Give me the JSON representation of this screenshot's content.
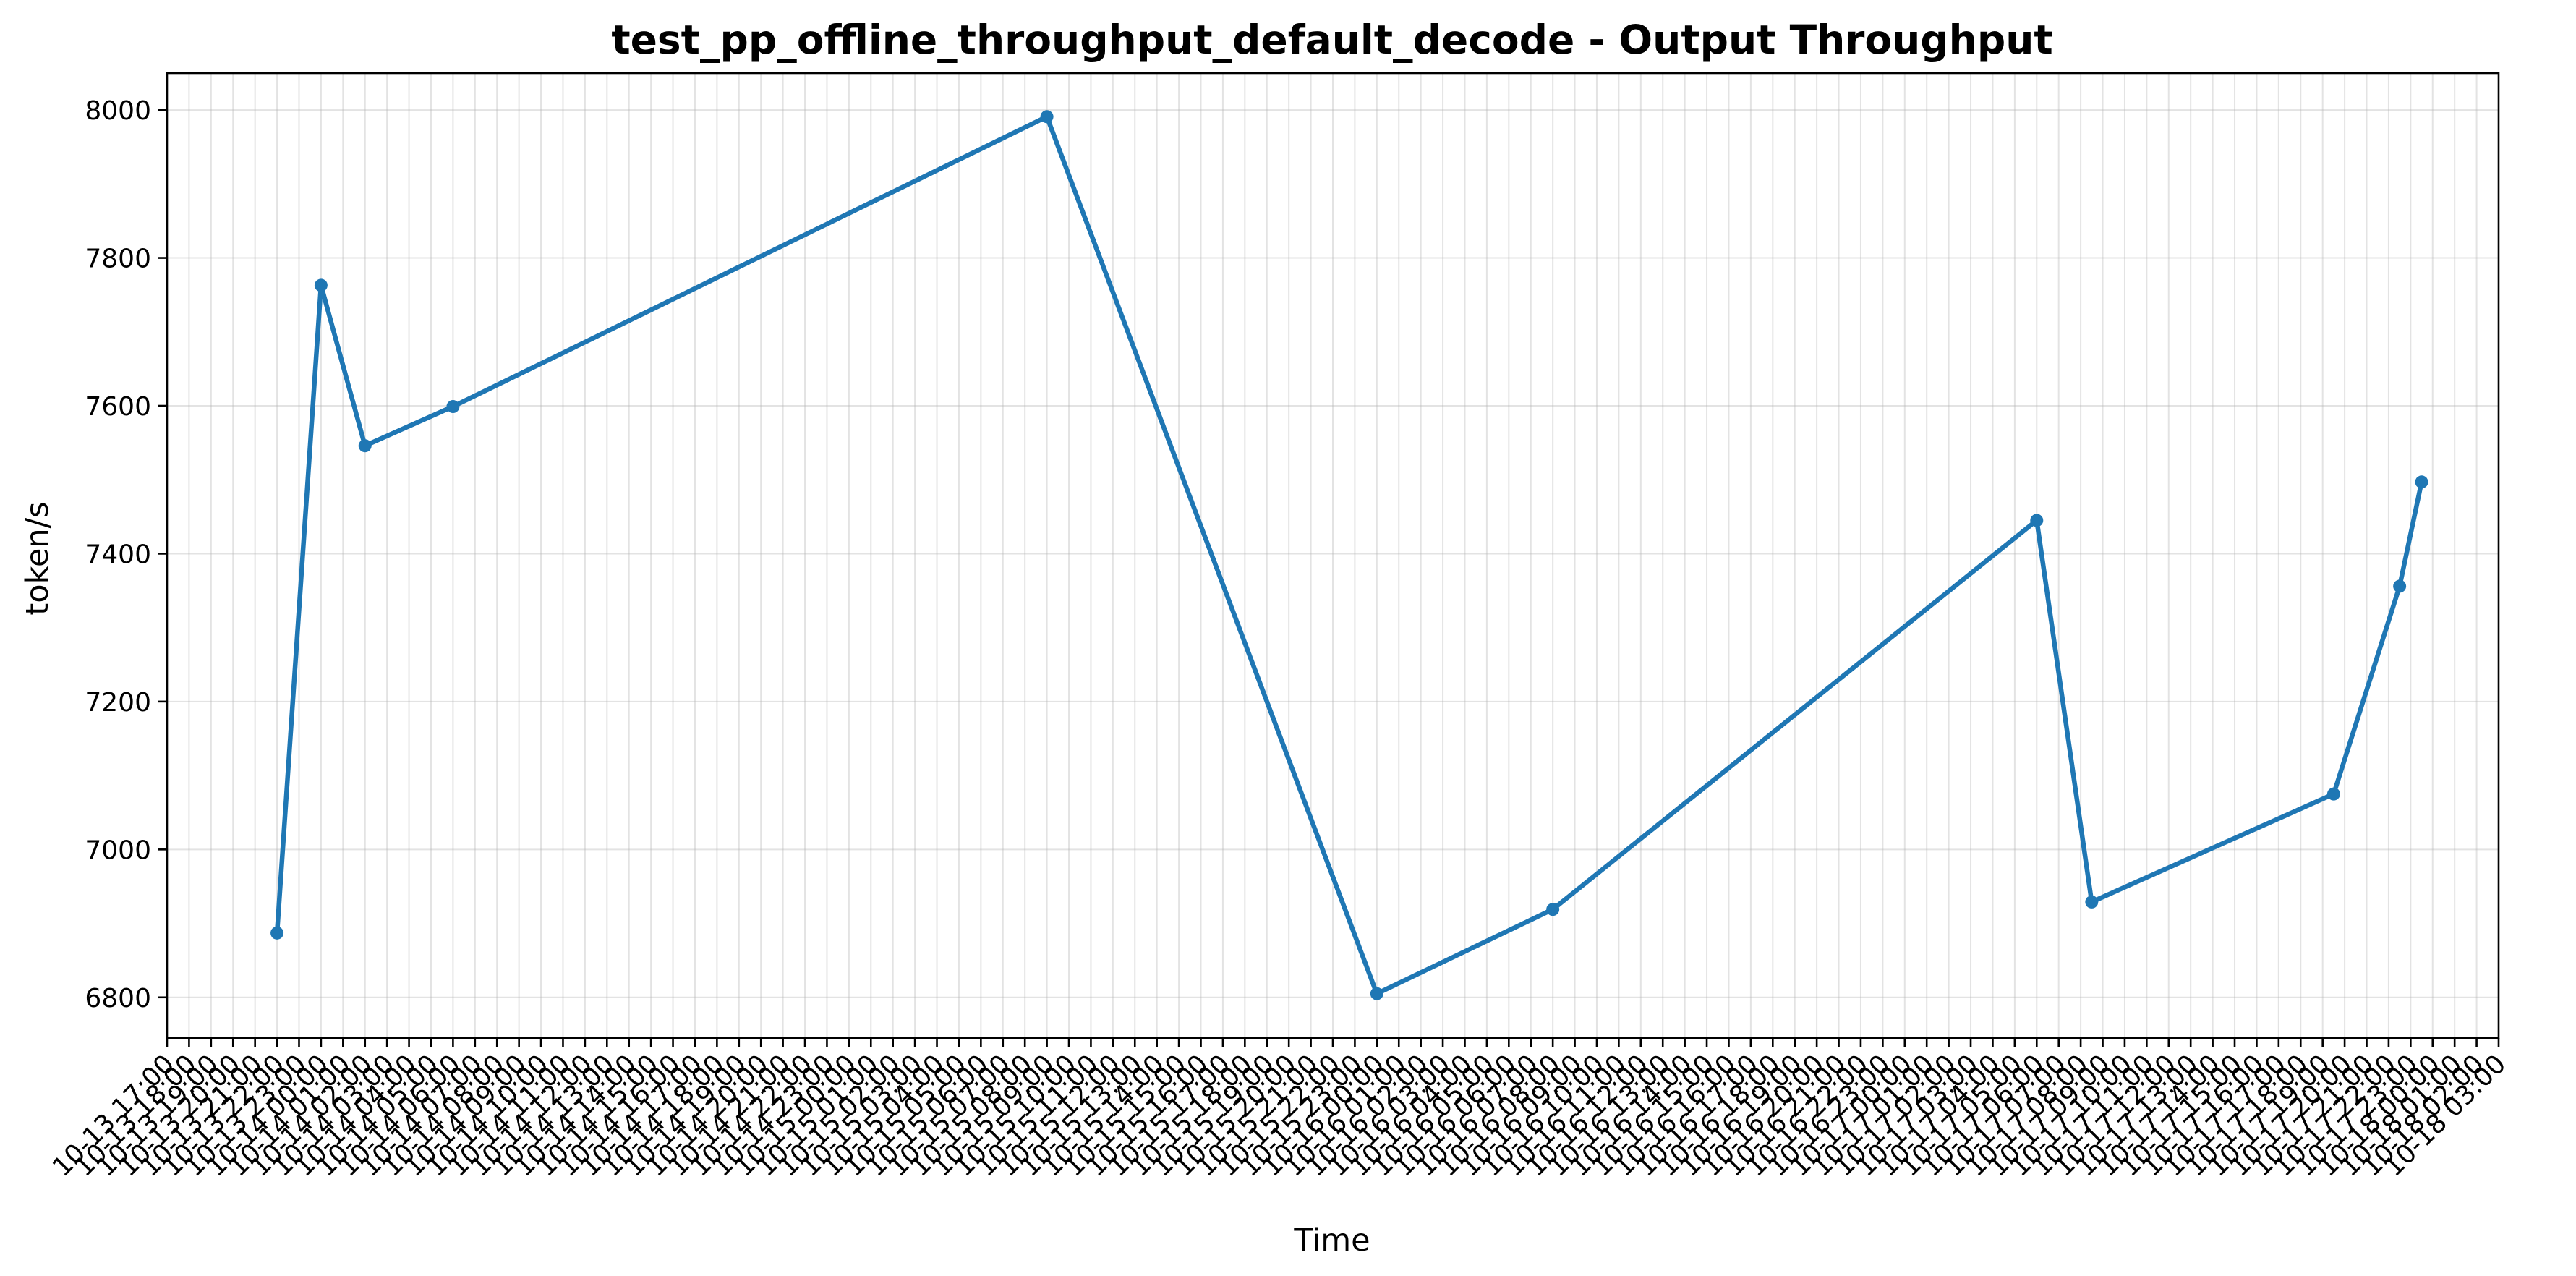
{
  "chart_data": {
    "type": "line",
    "title": "test_pp_offline_throughput_default_decode - Output Throughput",
    "xlabel": "Time",
    "ylabel": "token/s",
    "grid": true,
    "legend": "none",
    "color": "#1f77b4",
    "x_range": [
      "10-13 17:00",
      "10-18 03:00"
    ],
    "ylim": [
      6745,
      8050
    ],
    "yticks": [
      6800,
      7000,
      7200,
      7400,
      7600,
      7800,
      8000
    ],
    "xtick_step_hours": 1,
    "xtick_labels": [
      "10-13 17:00",
      "10-13 18:00",
      "10-13 19:00",
      "10-13 20:00",
      "10-13 21:00",
      "10-13 22:00",
      "10-13 23:00",
      "10-14 00:00",
      "10-14 01:00",
      "10-14 02:00",
      "10-14 03:00",
      "10-14 04:00",
      "10-14 05:00",
      "10-14 06:00",
      "10-14 07:00",
      "10-14 08:00",
      "10-14 09:00",
      "10-14 10:00",
      "10-14 11:00",
      "10-14 12:00",
      "10-14 13:00",
      "10-14 14:00",
      "10-14 15:00",
      "10-14 16:00",
      "10-14 17:00",
      "10-14 18:00",
      "10-14 19:00",
      "10-14 20:00",
      "10-14 21:00",
      "10-14 22:00",
      "10-14 23:00",
      "10-15 00:00",
      "10-15 01:00",
      "10-15 02:00",
      "10-15 03:00",
      "10-15 04:00",
      "10-15 05:00",
      "10-15 06:00",
      "10-15 07:00",
      "10-15 08:00",
      "10-15 09:00",
      "10-15 10:00",
      "10-15 11:00",
      "10-15 12:00",
      "10-15 13:00",
      "10-15 14:00",
      "10-15 15:00",
      "10-15 16:00",
      "10-15 17:00",
      "10-15 18:00",
      "10-15 19:00",
      "10-15 20:00",
      "10-15 21:00",
      "10-15 22:00",
      "10-15 23:00",
      "10-16 00:00",
      "10-16 01:00",
      "10-16 02:00",
      "10-16 03:00",
      "10-16 04:00",
      "10-16 05:00",
      "10-16 06:00",
      "10-16 07:00",
      "10-16 08:00",
      "10-16 09:00",
      "10-16 10:00",
      "10-16 11:00",
      "10-16 12:00",
      "10-16 13:00",
      "10-16 14:00",
      "10-16 15:00",
      "10-16 16:00",
      "10-16 17:00",
      "10-16 18:00",
      "10-16 19:00",
      "10-16 20:00",
      "10-16 21:00",
      "10-16 22:00",
      "10-16 23:00",
      "10-17 00:00",
      "10-17 01:00",
      "10-17 02:00",
      "10-17 03:00",
      "10-17 04:00",
      "10-17 05:00",
      "10-17 06:00",
      "10-17 07:00",
      "10-17 08:00",
      "10-17 09:00",
      "10-17 10:00",
      "10-17 11:00",
      "10-17 12:00",
      "10-17 13:00",
      "10-17 14:00",
      "10-17 15:00",
      "10-17 16:00",
      "10-17 17:00",
      "10-17 18:00",
      "10-17 19:00",
      "10-17 20:00",
      "10-17 21:00",
      "10-17 22:00",
      "10-17 23:00",
      "10-18 00:00",
      "10-18 01:00",
      "10-18 02:00",
      "10-18 03:00"
    ],
    "series": [
      {
        "x": [
          "10-13 22:00",
          "10-14 00:00",
          "10-14 02:00",
          "10-14 06:00",
          "10-15 09:00",
          "10-16 00:00",
          "10-16 08:00",
          "10-17 06:00",
          "10-17 08:30",
          "10-17 19:30",
          "10-17 22:30",
          "10-17 23:30"
        ],
        "y": [
          6887,
          7763,
          7546,
          7599,
          7991,
          6805,
          6919,
          7445,
          6929,
          7075,
          7356,
          7497
        ]
      }
    ]
  }
}
